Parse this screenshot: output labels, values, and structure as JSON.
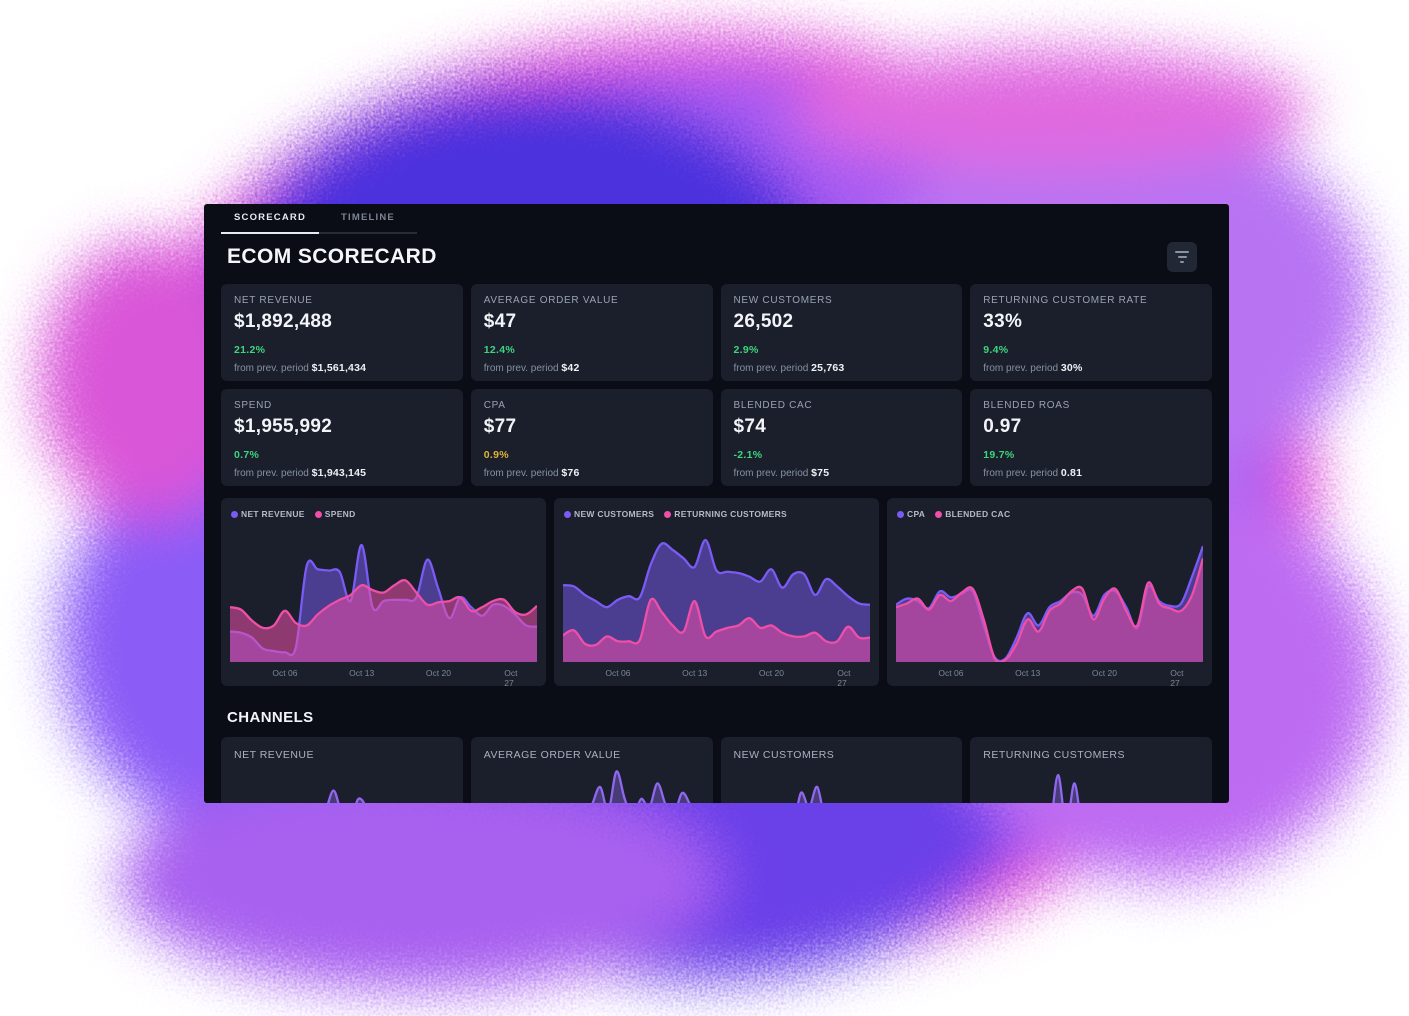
{
  "tabs": [
    {
      "label": "SCORECARD",
      "active": true
    },
    {
      "label": "TIMELINE",
      "active": false
    }
  ],
  "title": "ECOM SCORECARD",
  "kpis": [
    {
      "label": "NET REVENUE",
      "value": "$1,892,488",
      "delta": "21.2%",
      "delta_color": "#3fd47e",
      "prev_label": "from prev. period",
      "prev_value": "$1,561,434"
    },
    {
      "label": "AVERAGE ORDER VALUE",
      "value": "$47",
      "delta": "12.4%",
      "delta_color": "#3fd47e",
      "prev_label": "from prev. period",
      "prev_value": "$42"
    },
    {
      "label": "NEW CUSTOMERS",
      "value": "26,502",
      "delta": "2.9%",
      "delta_color": "#3fd47e",
      "prev_label": "from prev. period",
      "prev_value": "25,763"
    },
    {
      "label": "RETURNING CUSTOMER RATE",
      "value": "33%",
      "delta": "9.4%",
      "delta_color": "#3fd47e",
      "prev_label": "from prev. period",
      "prev_value": "30%"
    },
    {
      "label": "SPEND",
      "value": "$1,955,992",
      "delta": "0.7%",
      "delta_color": "#3fd47e",
      "prev_label": "from prev. period",
      "prev_value": "$1,943,145"
    },
    {
      "label": "CPA",
      "value": "$77",
      "delta": "0.9%",
      "delta_color": "#dfb239",
      "prev_label": "from prev. period",
      "prev_value": "$76"
    },
    {
      "label": "BLENDED CAC",
      "value": "$74",
      "delta": "-2.1%",
      "delta_color": "#3fd47e",
      "prev_label": "from prev. period",
      "prev_value": "$75"
    },
    {
      "label": "BLENDED ROAS",
      "value": "0.97",
      "delta": "19.7%",
      "delta_color": "#3fd47e",
      "prev_label": "from prev. period",
      "prev_value": "0.81"
    }
  ],
  "channels_heading": "CHANNELS",
  "colors": {
    "panel_bg": "#0a0d16",
    "card_bg": "#1a1f2b",
    "accent_purple": "#7b5bf5",
    "accent_pink": "#ef4fa7",
    "positive_green": "#3fd47e",
    "warning_yellow": "#dfb239",
    "mini_purple": "#8f68ee"
  },
  "chart_data": [
    {
      "type": "area",
      "x_labels": [
        "Oct 06",
        "Oct 13",
        "Oct 20",
        "Oct 27"
      ],
      "x_label_pos": [
        17.9,
        42.9,
        67.9,
        92.9
      ],
      "y_max": 105,
      "series": [
        {
          "name": "NET REVENUE",
          "color": "#7b5bf5",
          "fill_opacity": 0.5,
          "values": [
            25,
            24,
            20,
            11,
            9,
            8,
            12,
            79,
            76,
            75,
            74,
            50,
            96,
            45,
            50,
            51,
            51,
            53,
            84,
            60,
            36,
            53,
            45,
            38,
            47,
            46,
            39,
            30,
            29
          ]
        },
        {
          "name": "SPEND",
          "color": "#ef4fa7",
          "fill_opacity": 0.55,
          "values": [
            45,
            43,
            34,
            28,
            30,
            42,
            32,
            30,
            39,
            46,
            51,
            55,
            63,
            59,
            57,
            63,
            67,
            57,
            47,
            49,
            50,
            53,
            42,
            45,
            50,
            51,
            41,
            39,
            46
          ]
        }
      ]
    },
    {
      "type": "area",
      "x_labels": [
        "Oct 06",
        "Oct 13",
        "Oct 20",
        "Oct 27"
      ],
      "x_label_pos": [
        17.9,
        42.9,
        67.9,
        92.9
      ],
      "y_max": 105,
      "series": [
        {
          "name": "NEW CUSTOMERS",
          "color": "#7b5bf5",
          "fill_opacity": 0.5,
          "values": [
            63,
            62,
            55,
            50,
            45,
            51,
            54,
            53,
            80,
            97,
            92,
            85,
            78,
            100,
            75,
            74,
            73,
            70,
            66,
            76,
            61,
            72,
            72,
            55,
            68,
            62,
            54,
            48,
            47
          ]
        },
        {
          "name": "RETURNING CUSTOMERS",
          "color": "#ef4fa7",
          "fill_opacity": 0.55,
          "values": [
            22,
            26,
            15,
            14,
            21,
            17,
            17,
            18,
            51,
            41,
            30,
            25,
            50,
            21,
            25,
            28,
            30,
            36,
            28,
            30,
            24,
            21,
            21,
            24,
            17,
            17,
            29,
            20,
            20
          ]
        }
      ]
    },
    {
      "type": "area",
      "x_labels": [
        "Oct 06",
        "Oct 13",
        "Oct 20",
        "Oct 27"
      ],
      "x_label_pos": [
        17.9,
        42.9,
        67.9,
        92.9
      ],
      "y_max": 105,
      "series": [
        {
          "name": "CPA",
          "color": "#7b5bf5",
          "fill_opacity": 0.5,
          "values": [
            47,
            52,
            50,
            44,
            58,
            53,
            56,
            58,
            30,
            4,
            3,
            20,
            40,
            30,
            45,
            50,
            57,
            55,
            38,
            55,
            58,
            45,
            28,
            62,
            50,
            46,
            48,
            70,
            95
          ]
        },
        {
          "name": "BLENDED CAC",
          "color": "#ef4fa7",
          "fill_opacity": 0.55,
          "values": [
            45,
            48,
            52,
            43,
            55,
            50,
            57,
            60,
            35,
            3,
            2,
            15,
            35,
            25,
            42,
            48,
            58,
            60,
            35,
            52,
            60,
            42,
            30,
            65,
            48,
            44,
            42,
            55,
            85
          ]
        }
      ]
    },
    {
      "type": "area",
      "label": "NET REVENUE",
      "y_max": 65,
      "series": [
        {
          "name": "NET REVENUE",
          "color": "#8f68ee",
          "fill_opacity": 0.4,
          "values": [
            4,
            5,
            4,
            5,
            6,
            5,
            4,
            5,
            6,
            12,
            20,
            15,
            25,
            42,
            22,
            16,
            35,
            28,
            12,
            8,
            6,
            5,
            6,
            5,
            4,
            5,
            4,
            5,
            4
          ]
        }
      ]
    },
    {
      "type": "area",
      "label": "AVERAGE ORDER VALUE",
      "y_max": 65,
      "series": [
        {
          "name": "AVERAGE ORDER VALUE",
          "color": "#8f68ee",
          "fill_opacity": 0.4,
          "values": [
            5,
            4,
            5,
            6,
            5,
            4,
            6,
            5,
            7,
            6,
            8,
            14,
            25,
            18,
            30,
            45,
            25,
            58,
            35,
            20,
            35,
            28,
            48,
            30,
            22,
            40,
            30,
            18,
            12
          ]
        }
      ]
    },
    {
      "type": "area",
      "label": "NEW CUSTOMERS",
      "y_max": 65,
      "series": [
        {
          "name": "NEW CUSTOMERS",
          "color": "#8f68ee",
          "fill_opacity": 0.4,
          "values": [
            4,
            5,
            4,
            5,
            5,
            4,
            5,
            6,
            8,
            40,
            28,
            45,
            15,
            6,
            5,
            6,
            5,
            4,
            5,
            4,
            5,
            4,
            5,
            4,
            5,
            4,
            5,
            4,
            4
          ]
        }
      ]
    },
    {
      "type": "area",
      "label": "RETURNING CUSTOMERS",
      "y_max": 65,
      "series": [
        {
          "name": "RETURNING CUSTOMERS",
          "color": "#8f68ee",
          "fill_opacity": 0.4,
          "values": [
            4,
            5,
            4,
            5,
            6,
            5,
            4,
            5,
            6,
            10,
            55,
            12,
            48,
            8,
            5,
            6,
            14,
            5,
            4,
            5,
            6,
            4,
            5,
            4,
            5,
            4,
            5,
            4,
            4
          ]
        }
      ]
    }
  ]
}
